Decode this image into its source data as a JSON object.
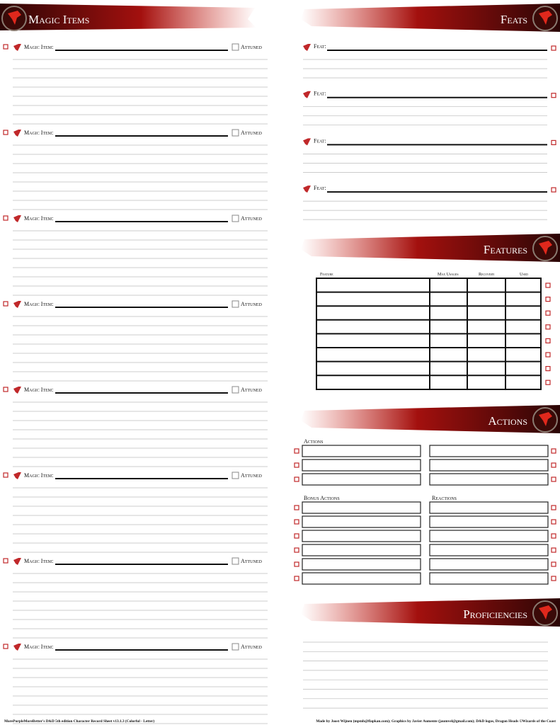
{
  "headings": {
    "magic_items": "Magic Items",
    "feats": "Feats",
    "features": "Features",
    "actions": "Actions",
    "proficiencies": "Proficiencies"
  },
  "magic_items": [
    {
      "label": "Magic Item:",
      "attuned": "Attuned"
    },
    {
      "label": "Magic Item:",
      "attuned": "Attuned"
    },
    {
      "label": "Magic Item:",
      "attuned": "Attuned"
    },
    {
      "label": "Magic Item:",
      "attuned": "Attuned"
    },
    {
      "label": "Magic Item:",
      "attuned": "Attuned"
    },
    {
      "label": "Magic Item:",
      "attuned": "Attuned"
    },
    {
      "label": "Magic Item:",
      "attuned": "Attuned"
    },
    {
      "label": "Magic Item:",
      "attuned": "Attuned"
    }
  ],
  "feats": [
    {
      "label": "Feat:"
    },
    {
      "label": "Feat:"
    },
    {
      "label": "Feat:"
    },
    {
      "label": "Feat:"
    }
  ],
  "features_table": {
    "headers": [
      "Feature",
      "Max Usages",
      "Recovery",
      "Used"
    ]
  },
  "actions_section": {
    "actions": "Actions",
    "bonus_actions": "Bonus Actions",
    "reactions": "Reactions"
  },
  "footer": {
    "left": "MorePurpleMoreBetter's D&D 5th edition Character Record Sheet v13.1.3 (Colorful - Letter)",
    "right": "Made by Joost Wijnen (mpmb@flapkan.com); Graphics by Javier Aumente (jaumvel@gmail.com); D&D logos, Dragon Heads ©Wizards of the Coast"
  }
}
